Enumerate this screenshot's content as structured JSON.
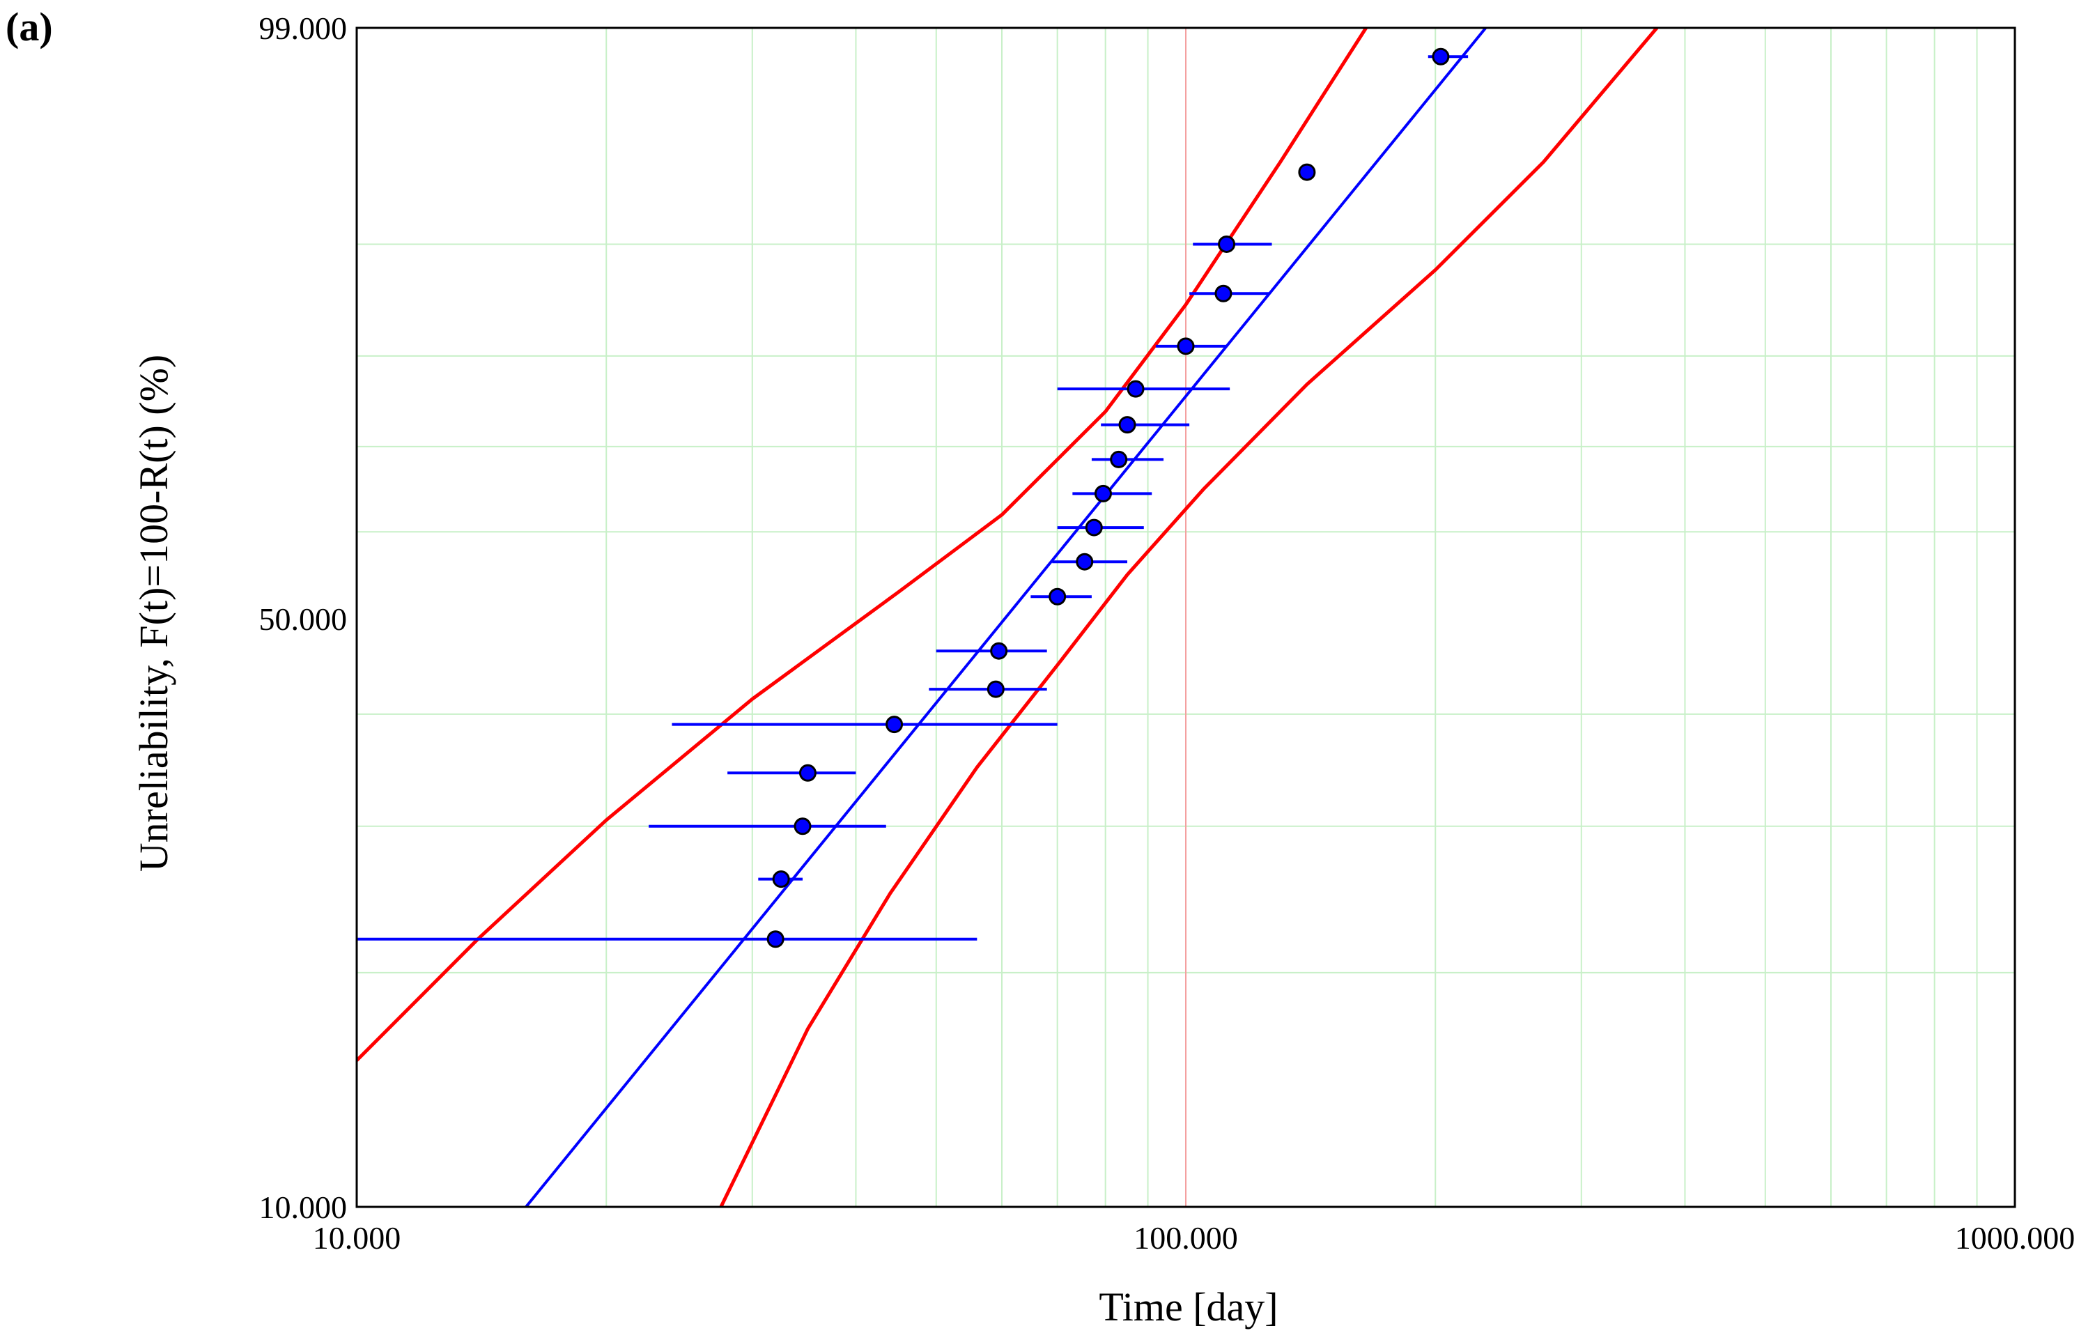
{
  "panel_label": "(a)",
  "chart_data": {
    "type": "scatter",
    "title": "",
    "xlabel": "Time [day]",
    "ylabel": "Unreliability, F(t)=100-R(t) (%)",
    "x_scale": "log",
    "y_scale": "probability",
    "xlim": [
      10,
      1000
    ],
    "ylim": [
      10,
      99
    ],
    "x_ticks": [
      {
        "value": 10,
        "label": "10.000"
      },
      {
        "value": 100,
        "label": "100.000"
      },
      {
        "value": 1000,
        "label": "1000.000"
      }
    ],
    "y_ticks": [
      {
        "value": 10,
        "label": "10.000"
      },
      {
        "value": 50,
        "label": "50.000"
      },
      {
        "value": 99,
        "label": "99.000"
      }
    ],
    "grid": true,
    "grid_color": "#c8f0c8",
    "reference_line_x": 100,
    "reference_line_color": "#f4a0a0",
    "points": [
      {
        "x": 32,
        "xmin": 10,
        "xmax": 56,
        "y": 22
      },
      {
        "x": 32.5,
        "xmin": 30.5,
        "xmax": 34.5,
        "y": 26
      },
      {
        "x": 34.5,
        "xmin": 22.5,
        "xmax": 43.5,
        "y": 30
      },
      {
        "x": 35,
        "xmin": 28,
        "xmax": 40,
        "y": 34.5
      },
      {
        "x": 44.5,
        "xmin": 24,
        "xmax": 70,
        "y": 39
      },
      {
        "x": 59,
        "xmin": 49,
        "xmax": 68,
        "y": 42.5
      },
      {
        "x": 59.5,
        "xmin": 50,
        "xmax": 68,
        "y": 46.5
      },
      {
        "x": 70,
        "xmin": 65,
        "xmax": 77,
        "y": 52.5
      },
      {
        "x": 75.5,
        "xmin": 69,
        "xmax": 85,
        "y": 56.5
      },
      {
        "x": 77.5,
        "xmin": 70,
        "xmax": 89,
        "y": 60.5
      },
      {
        "x": 79.5,
        "xmin": 73,
        "xmax": 91,
        "y": 64.5
      },
      {
        "x": 83,
        "xmin": 77,
        "xmax": 94,
        "y": 68.5
      },
      {
        "x": 85,
        "xmin": 79,
        "xmax": 101,
        "y": 72.5
      },
      {
        "x": 87,
        "xmin": 70,
        "xmax": 113,
        "y": 76.5
      },
      {
        "x": 100,
        "xmin": 92,
        "xmax": 112,
        "y": 81
      },
      {
        "x": 111,
        "xmin": 101,
        "xmax": 126,
        "y": 86
      },
      {
        "x": 112,
        "xmin": 102,
        "xmax": 127,
        "y": 90
      },
      {
        "x": 140,
        "xmin": 137,
        "xmax": 143,
        "y": 94.5
      },
      {
        "x": 203,
        "xmin": 196,
        "xmax": 219,
        "y": 98.5
      }
    ],
    "fit_line": {
      "color": "#0000ff",
      "points": [
        [
          16,
          10
        ],
        [
          230,
          99
        ]
      ]
    },
    "confidence_bounds": [
      {
        "name": "upper",
        "color": "#ff0000",
        "points": [
          [
            10,
            15.5
          ],
          [
            14,
            22
          ],
          [
            20,
            30.5
          ],
          [
            30,
            41.5
          ],
          [
            45,
            53
          ],
          [
            60,
            62
          ],
          [
            80,
            74
          ],
          [
            100,
            85
          ],
          [
            130,
            95
          ],
          [
            165,
            99
          ]
        ]
      },
      {
        "name": "lower",
        "color": "#ff0000",
        "points": [
          [
            27.5,
            10
          ],
          [
            35,
            17
          ],
          [
            44,
            25
          ],
          [
            56,
            35
          ],
          [
            70,
            45
          ],
          [
            85,
            55
          ],
          [
            105,
            65
          ],
          [
            140,
            77
          ],
          [
            200,
            88
          ],
          [
            270,
            95
          ],
          [
            370,
            99
          ]
        ]
      }
    ]
  }
}
